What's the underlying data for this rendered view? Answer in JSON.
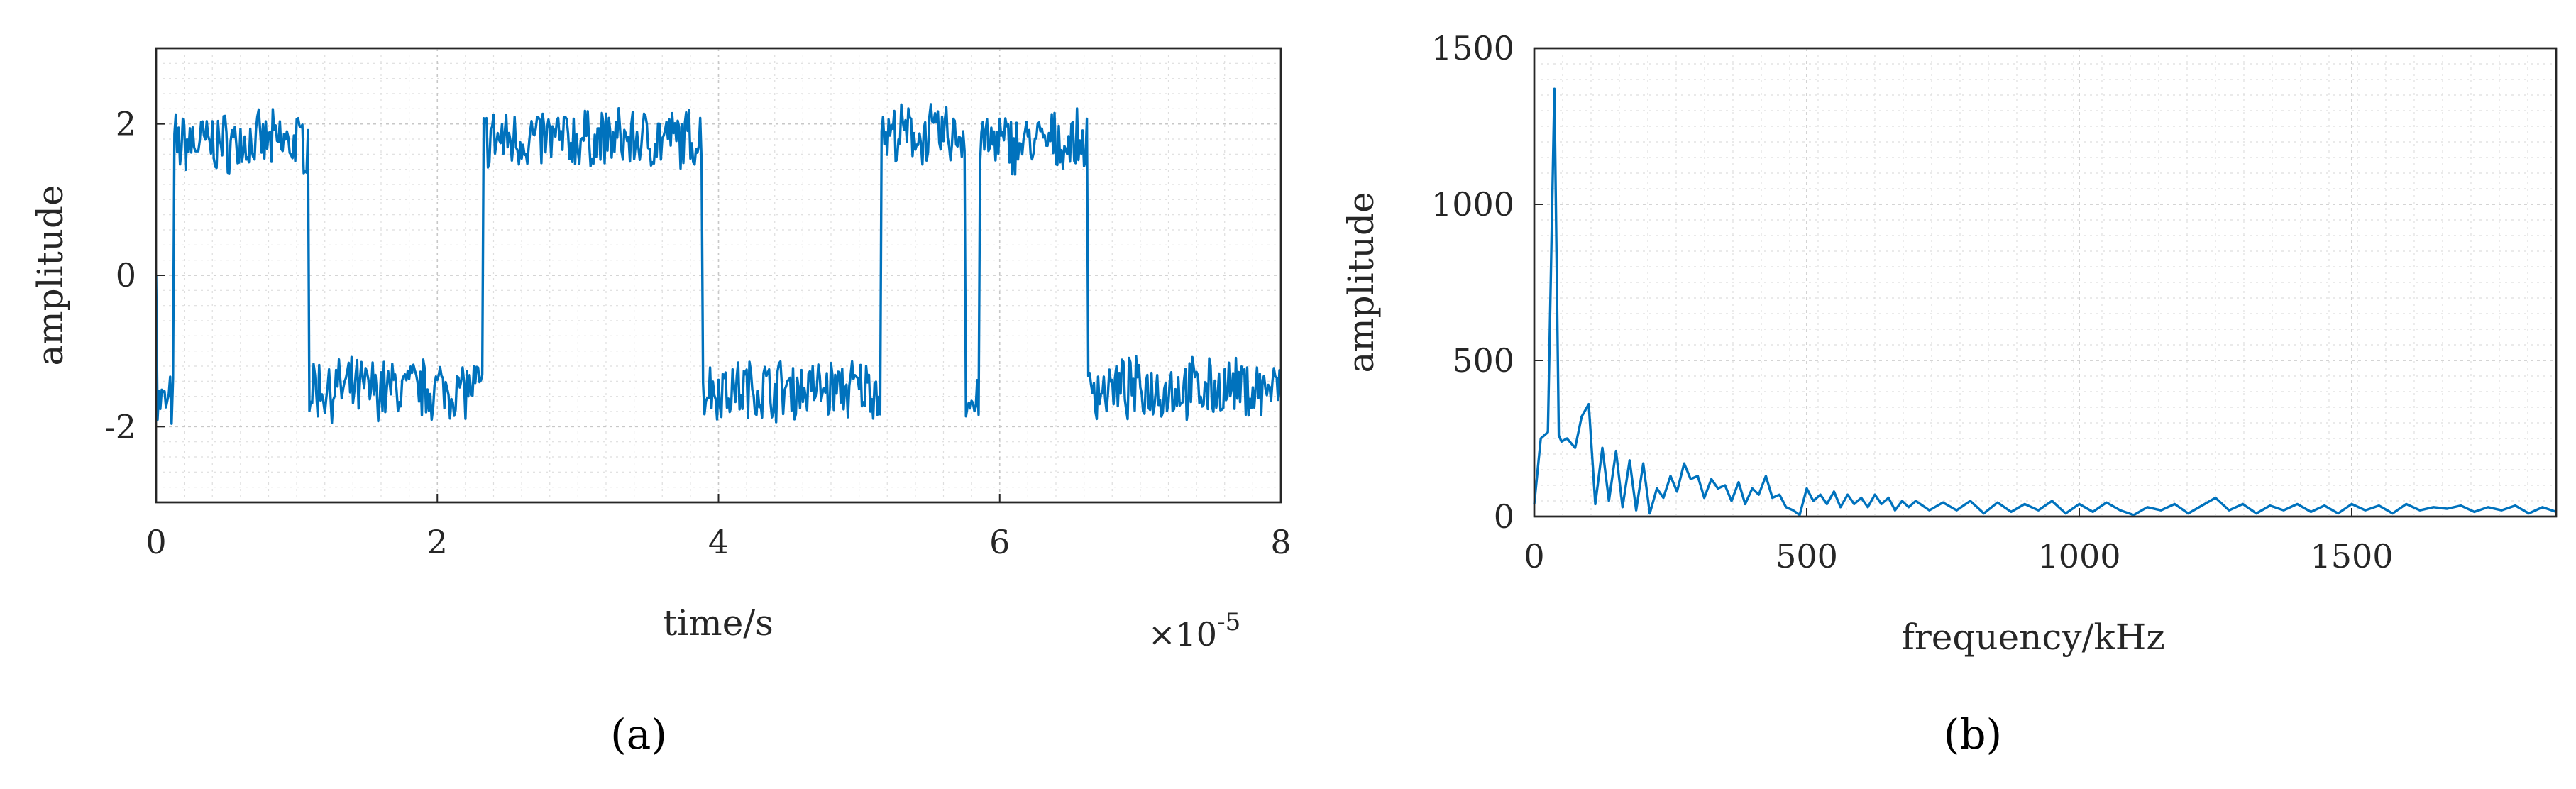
{
  "chart_data": [
    {
      "type": "line",
      "panel_label": "(a)",
      "xlabel": "time/s",
      "ylabel": "amplitude",
      "x_exponent_label": "×10",
      "x_exponent": "-5",
      "xlim": [
        0,
        8
      ],
      "ylim": [
        -3,
        3
      ],
      "xticks": [
        "0",
        "2",
        "4",
        "6",
        "8"
      ],
      "yticks": [
        "-2",
        "0",
        "2"
      ],
      "grid": true,
      "color": "#0072bd",
      "series": [
        {
          "segments": [
            {
              "x": [
                0.0,
                0.12
              ],
              "level": -1.7
            },
            {
              "x": [
                0.12,
                1.08
              ],
              "level": 1.75
            },
            {
              "x": [
                1.08,
                2.32
              ],
              "level": -1.5
            },
            {
              "x": [
                2.32,
                3.88
              ],
              "level": 1.8
            },
            {
              "x": [
                3.88,
                5.15
              ],
              "level": -1.5
            },
            {
              "x": [
                5.15,
                5.75
              ],
              "level": 1.85
            },
            {
              "x": [
                5.75,
                5.85
              ],
              "level": -1.7
            },
            {
              "x": [
                5.85,
                6.62
              ],
              "level": 1.75
            },
            {
              "x": [
                6.62,
                8.0
              ],
              "level": -1.5
            }
          ],
          "noise_amplitude": 0.35
        }
      ]
    },
    {
      "type": "line",
      "panel_label": "(b)",
      "xlabel": "frequency/kHz",
      "ylabel": "amplitude",
      "xlim": [
        0,
        1875
      ],
      "ylim": [
        0,
        1500
      ],
      "xticks": [
        "0",
        "500",
        "1000",
        "1500"
      ],
      "yticks": [
        "0",
        "500",
        "1000",
        "1500"
      ],
      "grid": true,
      "color": "#0072bd",
      "series": [
        {
          "x": [
            0,
            12,
            25,
            37,
            45,
            50,
            60,
            75,
            87,
            100,
            112,
            125,
            137,
            150,
            162,
            175,
            187,
            200,
            212,
            225,
            237,
            250,
            262,
            275,
            287,
            300,
            312,
            325,
            337,
            350,
            362,
            375,
            387,
            400,
            412,
            425,
            437,
            450,
            462,
            475,
            487,
            500,
            512,
            525,
            537,
            550,
            562,
            575,
            587,
            600,
            612,
            625,
            637,
            650,
            662,
            675,
            687,
            700,
            725,
            750,
            775,
            800,
            825,
            850,
            875,
            900,
            925,
            950,
            975,
            1000,
            1025,
            1050,
            1075,
            1100,
            1125,
            1150,
            1175,
            1200,
            1225,
            1250,
            1275,
            1300,
            1325,
            1350,
            1375,
            1400,
            1425,
            1450,
            1475,
            1500,
            1525,
            1550,
            1575,
            1600,
            1625,
            1650,
            1675,
            1700,
            1725,
            1750,
            1775,
            1800,
            1825,
            1850,
            1875
          ],
          "y": [
            40,
            250,
            270,
            1370,
            260,
            240,
            250,
            220,
            320,
            360,
            40,
            220,
            50,
            210,
            30,
            180,
            20,
            170,
            10,
            90,
            60,
            130,
            80,
            170,
            120,
            130,
            60,
            120,
            90,
            100,
            50,
            110,
            40,
            90,
            70,
            130,
            60,
            70,
            30,
            20,
            5,
            90,
            50,
            70,
            40,
            80,
            30,
            70,
            40,
            60,
            30,
            70,
            40,
            60,
            20,
            50,
            30,
            50,
            20,
            45,
            20,
            50,
            10,
            45,
            15,
            40,
            20,
            50,
            10,
            40,
            15,
            45,
            20,
            5,
            30,
            20,
            40,
            10,
            35,
            60,
            20,
            40,
            10,
            35,
            20,
            40,
            15,
            35,
            10,
            40,
            20,
            35,
            10,
            40,
            20,
            30,
            25,
            35,
            15,
            30,
            20,
            35,
            10,
            30,
            15
          ]
        }
      ]
    }
  ]
}
